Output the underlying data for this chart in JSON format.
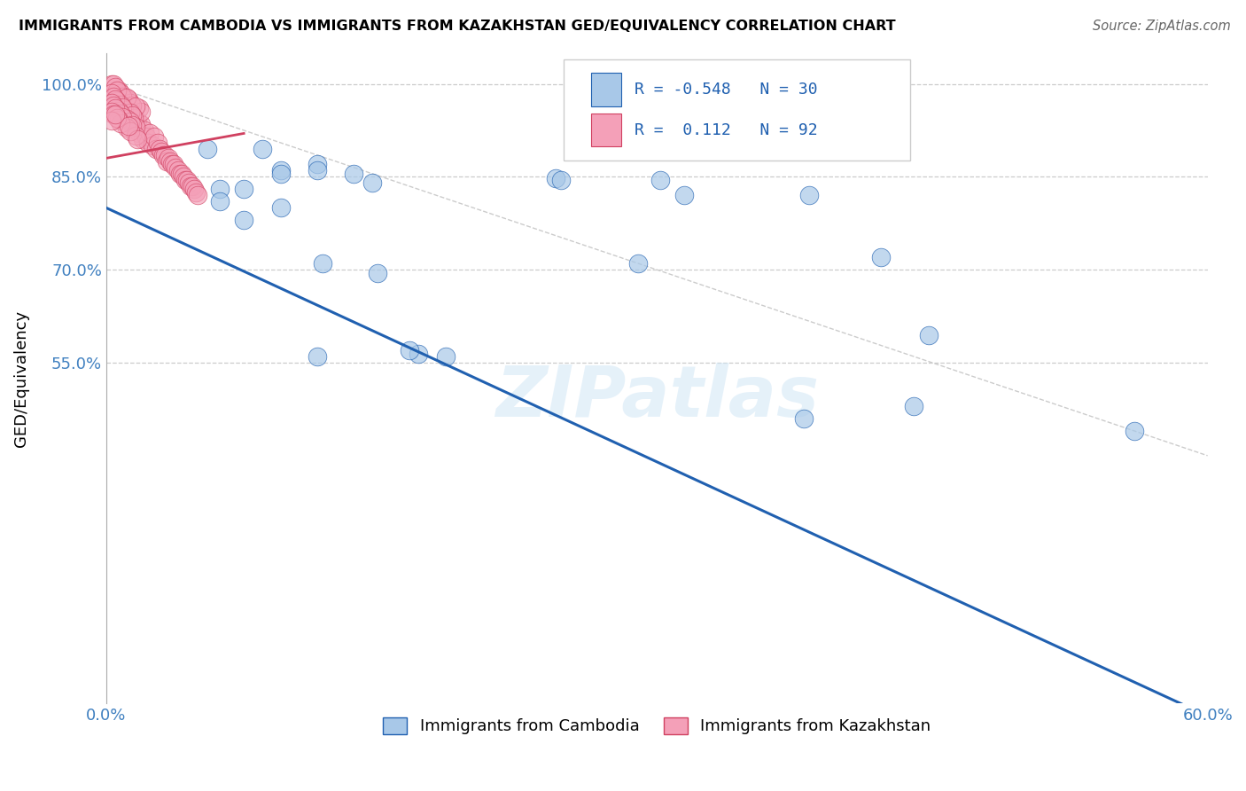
{
  "title": "IMMIGRANTS FROM CAMBODIA VS IMMIGRANTS FROM KAZAKHSTAN GED/EQUIVALENCY CORRELATION CHART",
  "source": "Source: ZipAtlas.com",
  "ylabel": "GED/Equivalency",
  "watermark": "ZIPatlas",
  "legend_R1": "-0.548",
  "legend_N1": "30",
  "legend_R2": "0.112",
  "legend_N2": "92",
  "color_cambodia": "#a8c8e8",
  "color_kazakhstan": "#f4a0b8",
  "trendline_cambodia_color": "#2060b0",
  "trendline_kazakhstan_color": "#d04060",
  "diag_color": "#cccccc",
  "background_color": "#ffffff",
  "grid_color": "#cccccc",
  "ytick_color": "#4080c0",
  "xtick_color": "#4080c0",
  "xlim": [
    0.0,
    0.6
  ],
  "ylim_data": [
    0.0,
    1.05
  ],
  "ytick_vals": [
    0.55,
    0.7,
    0.85,
    1.0
  ],
  "ytick_labels": [
    "55.0%",
    "70.0%",
    "85.0%",
    "100.0%"
  ],
  "xtick_vals": [
    0.0,
    0.6
  ],
  "xtick_labels": [
    "0.0%",
    "60.0%"
  ],
  "cam_trendline_x0": 0.0,
  "cam_trendline_y0": 0.8,
  "cam_trendline_x1": 0.6,
  "cam_trendline_y1": -0.02,
  "kaz_trendline_x0": 0.0,
  "kaz_trendline_y0": 0.88,
  "kaz_trendline_x1": 0.075,
  "kaz_trendline_y1": 0.92,
  "cambodia_x": [
    0.055,
    0.085,
    0.115,
    0.095,
    0.145,
    0.115,
    0.062,
    0.075,
    0.095,
    0.135,
    0.245,
    0.248,
    0.302,
    0.315,
    0.383,
    0.422,
    0.448,
    0.075,
    0.095,
    0.062,
    0.148,
    0.118,
    0.115,
    0.17,
    0.185,
    0.165,
    0.29,
    0.38,
    0.44,
    0.56
  ],
  "cambodia_y": [
    0.895,
    0.895,
    0.87,
    0.86,
    0.84,
    0.86,
    0.83,
    0.83,
    0.855,
    0.855,
    0.848,
    0.845,
    0.845,
    0.82,
    0.82,
    0.72,
    0.595,
    0.78,
    0.8,
    0.81,
    0.695,
    0.71,
    0.56,
    0.565,
    0.56,
    0.57,
    0.71,
    0.46,
    0.48,
    0.44
  ],
  "kazakhstan_x": [
    0.005,
    0.006,
    0.007,
    0.008,
    0.009,
    0.01,
    0.011,
    0.012,
    0.013,
    0.014,
    0.015,
    0.016,
    0.017,
    0.018,
    0.019,
    0.02,
    0.021,
    0.022,
    0.023,
    0.024,
    0.025,
    0.026,
    0.027,
    0.028,
    0.029,
    0.03,
    0.031,
    0.032,
    0.033,
    0.034,
    0.035,
    0.036,
    0.037,
    0.038,
    0.039,
    0.04,
    0.041,
    0.042,
    0.043,
    0.044,
    0.045,
    0.046,
    0.047,
    0.048,
    0.049,
    0.05,
    0.003,
    0.007,
    0.012,
    0.018,
    0.004,
    0.008,
    0.013,
    0.019,
    0.005,
    0.009,
    0.014,
    0.006,
    0.011,
    0.016,
    0.003,
    0.006,
    0.01,
    0.015,
    0.004,
    0.008,
    0.013,
    0.005,
    0.009,
    0.014,
    0.003,
    0.007,
    0.011,
    0.016,
    0.004,
    0.008,
    0.013,
    0.005,
    0.009,
    0.014,
    0.003,
    0.007,
    0.011,
    0.016,
    0.004,
    0.008,
    0.013,
    0.017,
    0.006,
    0.012,
    0.003,
    0.005
  ],
  "kazakhstan_y": [
    0.99,
    0.965,
    0.975,
    0.97,
    0.95,
    0.98,
    0.96,
    0.945,
    0.955,
    0.935,
    0.945,
    0.93,
    0.94,
    0.92,
    0.935,
    0.91,
    0.925,
    0.915,
    0.905,
    0.92,
    0.9,
    0.915,
    0.895,
    0.905,
    0.895,
    0.89,
    0.885,
    0.885,
    0.875,
    0.88,
    0.875,
    0.87,
    0.87,
    0.865,
    0.86,
    0.855,
    0.855,
    0.85,
    0.845,
    0.845,
    0.84,
    0.835,
    0.835,
    0.83,
    0.825,
    0.82,
    1.005,
    0.99,
    0.975,
    0.96,
    1.0,
    0.985,
    0.97,
    0.955,
    0.995,
    0.98,
    0.965,
    0.99,
    0.978,
    0.964,
    0.985,
    0.972,
    0.958,
    0.945,
    0.98,
    0.967,
    0.953,
    0.975,
    0.962,
    0.949,
    0.97,
    0.957,
    0.944,
    0.931,
    0.965,
    0.952,
    0.939,
    0.96,
    0.947,
    0.934,
    0.955,
    0.942,
    0.929,
    0.916,
    0.95,
    0.937,
    0.924,
    0.911,
    0.945,
    0.932,
    0.94,
    0.95
  ]
}
